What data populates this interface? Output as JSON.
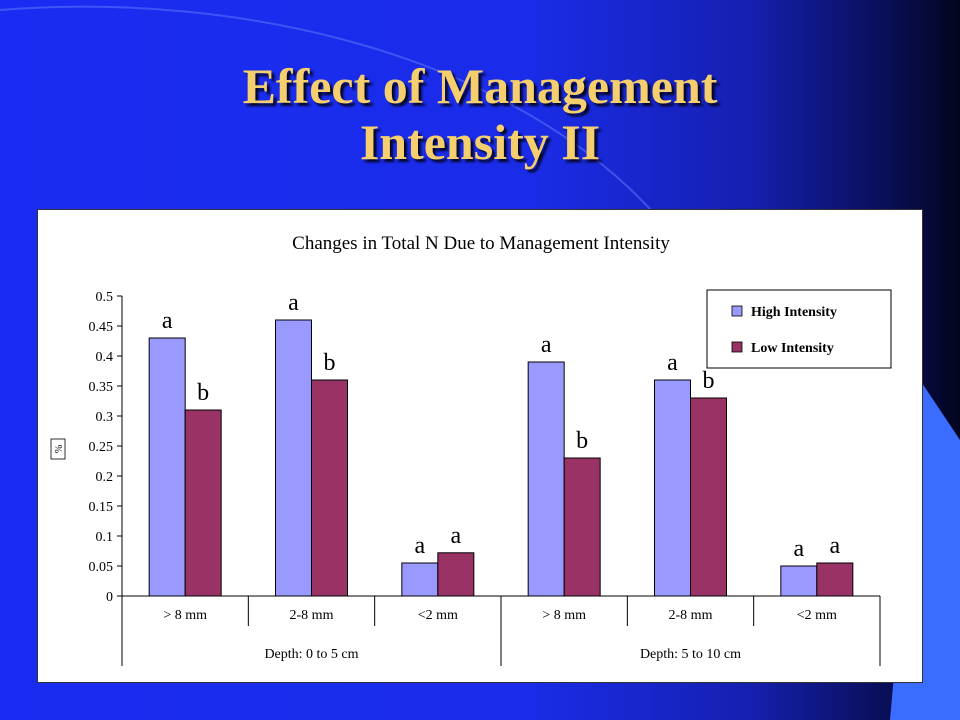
{
  "slide": {
    "title_line1": "Effect of Management",
    "title_line2": "Intensity II"
  },
  "colors": {
    "background": "#1a2ce8",
    "title": "#f5cf6e",
    "high_intensity": "#9999ff",
    "low_intensity": "#993366"
  },
  "chart_data": {
    "type": "bar",
    "title": "Changes in Total N Due to Management Intensity",
    "ylabel": "%",
    "xlabel": "",
    "ylim": [
      0,
      0.5
    ],
    "yticks": [
      "0",
      "0.05",
      "0.1",
      "0.15",
      "0.2",
      "0.25",
      "0.3",
      "0.35",
      "0.4",
      "0.45",
      "0.5"
    ],
    "categories": [
      "> 8 mm",
      "2-8 mm",
      "<2 mm",
      "> 8 mm",
      "2-8 mm",
      "<2 mm"
    ],
    "groups": [
      "Depth:  0 to 5 cm",
      "Depth:  5 to 10 cm"
    ],
    "legend_position": "top-right",
    "series": [
      {
        "name": "High Intensity",
        "values": [
          0.43,
          0.46,
          0.055,
          0.39,
          0.36,
          0.05
        ],
        "letters": [
          "a",
          "a",
          "a",
          "a",
          "a",
          "a"
        ]
      },
      {
        "name": "Low Intensity",
        "values": [
          0.31,
          0.36,
          0.072,
          0.23,
          0.33,
          0.055
        ],
        "letters": [
          "b",
          "b",
          "a",
          "b",
          "b",
          "a"
        ]
      }
    ]
  }
}
